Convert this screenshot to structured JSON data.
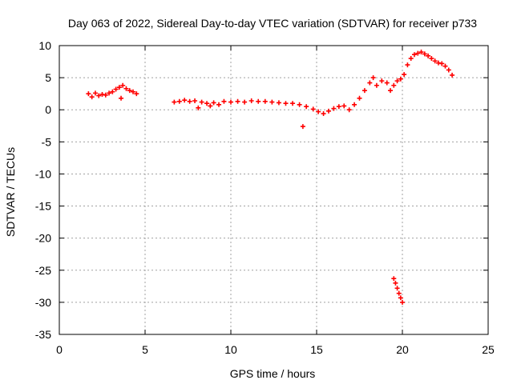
{
  "chart_data": {
    "type": "scatter",
    "title": "Day 063 of 2022, Sidereal Day-to-day VTEC variation (SDTVAR) for receiver p733",
    "xlabel": "GPS time / hours",
    "ylabel": "SDTVAR / TECUs",
    "xlim": [
      0,
      25
    ],
    "ylim": [
      -35,
      10
    ],
    "xticks": [
      0,
      5,
      10,
      15,
      20,
      25
    ],
    "yticks": [
      10,
      5,
      0,
      -5,
      -10,
      -15,
      -20,
      -25,
      -30,
      -35
    ],
    "grid": true,
    "marker": "+",
    "series_color": "#ff0000",
    "series": [
      {
        "name": "segment-1",
        "points": [
          [
            1.7,
            2.5
          ],
          [
            1.9,
            2.0
          ],
          [
            2.1,
            2.6
          ],
          [
            2.3,
            2.2
          ],
          [
            2.5,
            2.4
          ],
          [
            2.7,
            2.3
          ],
          [
            2.9,
            2.6
          ],
          [
            3.1,
            2.8
          ],
          [
            3.3,
            3.2
          ],
          [
            3.5,
            3.5
          ],
          [
            3.6,
            1.8
          ],
          [
            3.7,
            3.8
          ],
          [
            3.9,
            3.3
          ],
          [
            4.1,
            3.0
          ],
          [
            4.3,
            2.8
          ],
          [
            4.5,
            2.5
          ]
        ]
      },
      {
        "name": "segment-2",
        "points": [
          [
            6.7,
            1.2
          ],
          [
            7.0,
            1.3
          ],
          [
            7.3,
            1.5
          ],
          [
            7.6,
            1.3
          ],
          [
            7.9,
            1.4
          ],
          [
            8.1,
            0.3
          ],
          [
            8.3,
            1.2
          ],
          [
            8.6,
            1.0
          ],
          [
            8.8,
            0.6
          ],
          [
            9.0,
            1.1
          ],
          [
            9.3,
            0.8
          ],
          [
            9.6,
            1.3
          ],
          [
            10.0,
            1.2
          ],
          [
            10.4,
            1.3
          ],
          [
            10.8,
            1.2
          ],
          [
            11.2,
            1.4
          ],
          [
            11.6,
            1.3
          ],
          [
            12.0,
            1.3
          ],
          [
            12.4,
            1.2
          ],
          [
            12.8,
            1.1
          ],
          [
            13.2,
            1.0
          ],
          [
            13.6,
            1.0
          ],
          [
            14.0,
            0.8
          ],
          [
            14.4,
            0.5
          ],
          [
            14.8,
            0.1
          ],
          [
            15.1,
            -0.3
          ],
          [
            15.4,
            -0.6
          ],
          [
            15.7,
            -0.2
          ],
          [
            16.0,
            0.2
          ],
          [
            16.3,
            0.5
          ],
          [
            16.6,
            0.6
          ],
          [
            14.2,
            -2.6
          ]
        ]
      },
      {
        "name": "segment-3",
        "points": [
          [
            16.9,
            0.0
          ],
          [
            17.2,
            0.8
          ],
          [
            17.5,
            1.8
          ],
          [
            17.8,
            3.0
          ],
          [
            18.1,
            4.2
          ],
          [
            18.3,
            5.0
          ],
          [
            18.5,
            3.8
          ],
          [
            18.8,
            4.5
          ],
          [
            19.1,
            4.2
          ],
          [
            19.3,
            3.0
          ],
          [
            19.5,
            3.8
          ],
          [
            19.7,
            4.5
          ],
          [
            19.9,
            4.8
          ],
          [
            20.1,
            5.5
          ],
          [
            20.3,
            7.0
          ],
          [
            20.5,
            8.0
          ],
          [
            20.7,
            8.6
          ],
          [
            20.9,
            8.8
          ],
          [
            21.1,
            9.0
          ],
          [
            21.3,
            8.7
          ],
          [
            21.5,
            8.4
          ],
          [
            21.7,
            8.0
          ],
          [
            21.9,
            7.6
          ],
          [
            22.1,
            7.3
          ],
          [
            22.3,
            7.2
          ],
          [
            22.5,
            6.8
          ],
          [
            22.7,
            6.2
          ],
          [
            22.9,
            5.4
          ]
        ]
      },
      {
        "name": "segment-4",
        "points": [
          [
            19.5,
            -26.3
          ],
          [
            19.6,
            -27.0
          ],
          [
            19.7,
            -27.8
          ],
          [
            19.8,
            -28.6
          ],
          [
            19.9,
            -29.3
          ],
          [
            20.0,
            -30.0
          ]
        ]
      }
    ]
  }
}
